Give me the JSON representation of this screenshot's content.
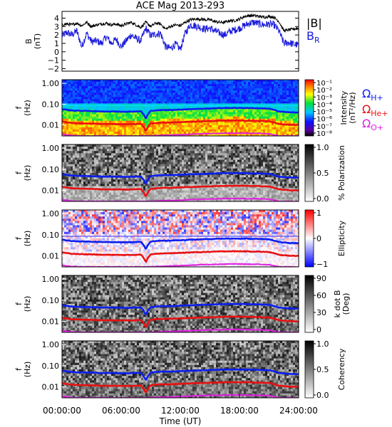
{
  "title": "ACE Mag 2013-293",
  "xaxis": {
    "label": "Time (UT)",
    "ticks": [
      "00:00:00",
      "06:00:00",
      "12:00:00",
      "18:00:00",
      "24:00:00"
    ],
    "tick_hours": [
      0,
      6,
      12,
      18,
      24
    ]
  },
  "colors": {
    "b_total": "#000000",
    "b_r": "#1a1adc",
    "h_plus": "#0a1ef0",
    "he_plus": "#e81010",
    "o_plus": "#e020e0"
  },
  "panel1": {
    "ylabel_line1": "B",
    "ylabel_line2": "(nT)",
    "yticks": [
      "4",
      "3",
      "2",
      "1",
      "0",
      "−1",
      "−2"
    ],
    "legend_b": "|B|",
    "legend_br_base": "B",
    "legend_br_sub": "R"
  },
  "freq_ylabel": {
    "line1": "f",
    "line2": "(Hz)"
  },
  "freq_ticks": [
    "1.00",
    "0.10",
    "0.01"
  ],
  "gyro_legend": [
    {
      "base": "Ω",
      "sub": "H+",
      "color_key": "h_plus"
    },
    {
      "base": "Ω",
      "sub": "He+",
      "color_key": "he_plus"
    },
    {
      "base": "Ω",
      "sub": "O+",
      "color_key": "o_plus"
    }
  ],
  "colorbars": [
    {
      "label": "Intensity (nT²/Hz)",
      "label_line1": "Intensity",
      "label_line2": "(nT²/Hz)",
      "ticks": [
        "10⁻¹",
        "10⁻²",
        "10⁻³",
        "10⁻⁴",
        "10⁻⁵",
        "10⁻⁶",
        "10⁻⁷",
        "10⁻⁸"
      ],
      "scale": "rainbow"
    },
    {
      "label": "% Polarization",
      "ticks": [
        "1.0",
        "0.5",
        "0.0"
      ],
      "scale": "gray"
    },
    {
      "label": "Ellipticity",
      "ticks": [
        "1",
        "0",
        "−1"
      ],
      "scale": "bwr"
    },
    {
      "label": "k dot B (Deg)",
      "label_line1": "k dot B",
      "label_line2": "(Deg)",
      "ticks": [
        "90",
        "60",
        "30",
        "0"
      ],
      "scale": "gray"
    },
    {
      "label": "Coherency",
      "ticks": [
        "1.0",
        "0.5",
        "0.0"
      ],
      "scale": "gray"
    }
  ],
  "chart_data": [
    {
      "type": "line",
      "title": "ACE Mag 2013-293",
      "ylabel": "B (nT)",
      "xlabel": "",
      "ylim": [
        -2.3,
        4.8
      ],
      "x": [
        0,
        0.5,
        1,
        1.5,
        2,
        2.5,
        3,
        3.5,
        4,
        4.5,
        5,
        5.5,
        6,
        6.5,
        7,
        7.5,
        8,
        8.5,
        9,
        9.5,
        10,
        10.5,
        11,
        11.5,
        12,
        12.5,
        13,
        13.5,
        14,
        14.5,
        15,
        15.5,
        16,
        16.5,
        17,
        17.5,
        18,
        18.5,
        19,
        19.5,
        20,
        20.5,
        21,
        21.5,
        22,
        22.5,
        23,
        23.5,
        24
      ],
      "series": [
        {
          "name": "|B|",
          "values": [
            3.2,
            3.3,
            3.2,
            3.4,
            3.1,
            3.5,
            3.0,
            3.2,
            3.3,
            3.4,
            3.2,
            3.3,
            3.1,
            3.3,
            3.5,
            3.2,
            2.9,
            3.5,
            3.0,
            3.4,
            3.3,
            2.7,
            3.0,
            3.2,
            3.1,
            3.5,
            3.8,
            3.9,
            3.9,
            3.8,
            3.8,
            3.6,
            3.5,
            3.5,
            3.7,
            3.7,
            3.9,
            4.2,
            4.3,
            4.3,
            4.2,
            4.1,
            4.2,
            4.1,
            3.6,
            2.5,
            2.6,
            2.7,
            2.8
          ]
        },
        {
          "name": "B_R",
          "values": [
            1.9,
            2.3,
            2.0,
            2.5,
            0.6,
            2.2,
            1.2,
            1.3,
            1.0,
            1.8,
            1.0,
            1.5,
            0.6,
            1.3,
            2.0,
            1.6,
            1.3,
            2.8,
            1.9,
            2.1,
            2.2,
            0.6,
            0.4,
            0.9,
            0.3,
            2.2,
            3.2,
            3.1,
            2.9,
            2.7,
            2.8,
            2.5,
            2.2,
            2.0,
            2.4,
            2.6,
            2.8,
            3.1,
            3.4,
            3.5,
            3.3,
            3.2,
            3.3,
            3.2,
            2.5,
            1.0,
            1.1,
            0.9,
            0.8
          ]
        }
      ]
    },
    {
      "type": "heatmap",
      "panel": "Intensity",
      "ylabel": "f (Hz)",
      "yscale": "log",
      "ylim": [
        0.003,
        1.5
      ],
      "colorbar_range": [
        1e-08,
        0.1
      ],
      "x": [
        0,
        1,
        2,
        3,
        4,
        5,
        6,
        7,
        8,
        8.5,
        9,
        10,
        11,
        12,
        13,
        14,
        15,
        16,
        17,
        18,
        19,
        20,
        21,
        22,
        23,
        24
      ],
      "series": [
        {
          "name": "Ω H+",
          "values": [
            0.058,
            0.05,
            0.048,
            0.047,
            0.045,
            0.045,
            0.044,
            0.044,
            0.046,
            0.02,
            0.048,
            0.052,
            0.053,
            0.055,
            0.058,
            0.06,
            0.062,
            0.065,
            0.066,
            0.066,
            0.065,
            0.063,
            0.061,
            0.045,
            0.041,
            0.04
          ]
        },
        {
          "name": "Ω He+",
          "values": [
            0.0145,
            0.0125,
            0.012,
            0.0118,
            0.0112,
            0.0112,
            0.011,
            0.011,
            0.0115,
            0.005,
            0.012,
            0.013,
            0.0132,
            0.0138,
            0.0145,
            0.015,
            0.0155,
            0.0162,
            0.0165,
            0.0165,
            0.0162,
            0.0158,
            0.0152,
            0.0112,
            0.0102,
            0.01
          ]
        },
        {
          "name": "Ω O+",
          "values": [
            0.0036,
            0.0031,
            0.003,
            0.003,
            0.003,
            0.003,
            0.003,
            0.003,
            0.003,
            0.003,
            0.003,
            0.0032,
            0.0033,
            0.0034,
            0.0036,
            0.0038,
            0.0039,
            0.004,
            0.0041,
            0.0041,
            0.004,
            0.004,
            0.0038,
            0.003,
            0.003,
            0.003
          ]
        }
      ]
    },
    {
      "type": "heatmap",
      "panel": "% Polarization",
      "ylabel": "f (Hz)",
      "colorbar_range": [
        0,
        1
      ]
    },
    {
      "type": "heatmap",
      "panel": "Ellipticity",
      "ylabel": "f (Hz)",
      "colorbar_range": [
        -1,
        1
      ]
    },
    {
      "type": "heatmap",
      "panel": "k dot B",
      "ylabel": "f (Hz)",
      "colorbar_range": [
        0,
        90
      ]
    },
    {
      "type": "heatmap",
      "panel": "Coherency",
      "ylabel": "f (Hz)",
      "colorbar_range": [
        0,
        1
      ]
    }
  ]
}
